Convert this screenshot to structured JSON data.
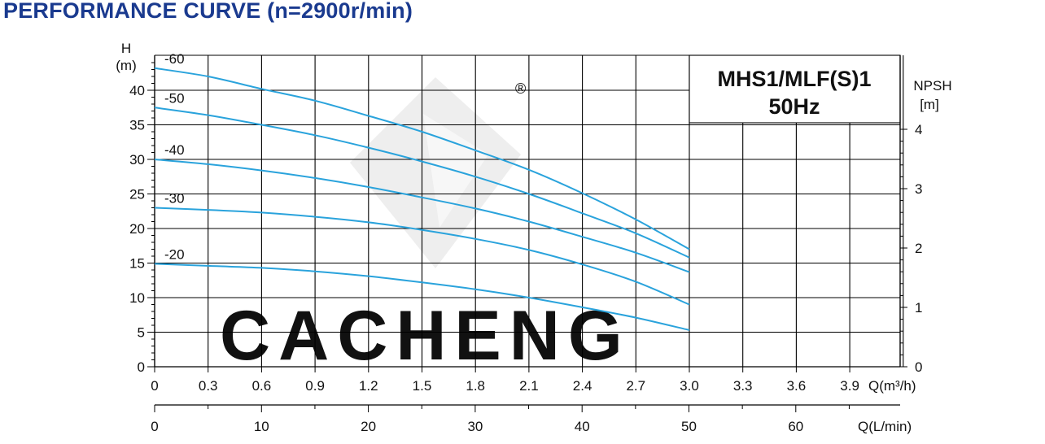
{
  "title": "PERFORMANCE CURVE (n=2900r/min)",
  "colors": {
    "title": "#1a3a8f",
    "curve": "#2aa3dc",
    "grid": "#000000",
    "watermark": "#ececec"
  },
  "chart_data": {
    "type": "line",
    "model_label": "MHS1/MLF(S)1",
    "freq_label": "50Hz",
    "watermark": "CACHENG",
    "watermark_mark": "®",
    "y_axis": {
      "label_top": "H",
      "label_unit": "(m)",
      "ylim": [
        0,
        45
      ],
      "ticks": [
        "0",
        "5",
        "10",
        "15",
        "20",
        "25",
        "30",
        "35",
        "40"
      ],
      "tick_values": [
        0,
        5,
        10,
        15,
        20,
        25,
        30,
        35,
        40
      ]
    },
    "npsh_axis": {
      "label_top": "NPSH",
      "label_unit": "[m]",
      "ylim": [
        0,
        4
      ],
      "ticks": [
        "0",
        "1",
        "2",
        "3",
        "4"
      ],
      "tick_values": [
        0,
        1,
        2,
        3,
        4
      ]
    },
    "x_axis_m3h": {
      "unit_label": "Q(m³/h)",
      "xlim": [
        0,
        4.2
      ],
      "ticks": [
        "0",
        "0.3",
        "0.6",
        "0.9",
        "1.2",
        "1.5",
        "1.8",
        "2.1",
        "2.4",
        "2.7",
        "3.0",
        "3.3",
        "3.6",
        "3.9"
      ],
      "tick_values": [
        0,
        0.3,
        0.6,
        0.9,
        1.2,
        1.5,
        1.8,
        2.1,
        2.4,
        2.7,
        3.0,
        3.3,
        3.6,
        3.9
      ]
    },
    "x_axis_lmin": {
      "unit_label": "Q(L/min)",
      "ticks": [
        "0",
        "10",
        "20",
        "30",
        "40",
        "50",
        "60"
      ],
      "tick_values": [
        0,
        10,
        20,
        30,
        40,
        50,
        60
      ]
    },
    "series": [
      {
        "name": "-60",
        "x": [
          0,
          0.3,
          0.6,
          0.9,
          1.2,
          1.5,
          1.8,
          2.1,
          2.4,
          2.7,
          3.0
        ],
        "values": [
          43.2,
          42.0,
          40.2,
          38.5,
          36.3,
          34.0,
          31.3,
          28.5,
          25.1,
          21.3,
          17.0
        ]
      },
      {
        "name": "-50",
        "x": [
          0,
          0.3,
          0.6,
          0.9,
          1.2,
          1.5,
          1.8,
          2.1,
          2.4,
          2.7,
          3.0
        ],
        "values": [
          37.5,
          36.4,
          35.0,
          33.5,
          31.7,
          29.7,
          27.5,
          25.0,
          22.2,
          19.3,
          15.8
        ]
      },
      {
        "name": "-40",
        "x": [
          0,
          0.3,
          0.6,
          0.9,
          1.2,
          1.5,
          1.8,
          2.1,
          2.4,
          2.7,
          3.0
        ],
        "values": [
          30.0,
          29.3,
          28.4,
          27.3,
          26.0,
          24.5,
          22.9,
          21.0,
          18.8,
          16.5,
          13.7
        ]
      },
      {
        "name": "-30",
        "x": [
          0,
          0.3,
          0.6,
          0.9,
          1.2,
          1.5,
          1.8,
          2.1,
          2.4,
          2.7,
          3.0
        ],
        "values": [
          23.0,
          22.7,
          22.3,
          21.7,
          20.9,
          19.8,
          18.5,
          16.9,
          14.8,
          12.3,
          9.0
        ]
      },
      {
        "name": "-20",
        "x": [
          0,
          0.3,
          0.6,
          0.9,
          1.2,
          1.5,
          1.8,
          2.1,
          2.4,
          2.7,
          3.0
        ],
        "values": [
          14.9,
          14.6,
          14.3,
          13.8,
          13.1,
          12.2,
          11.2,
          10.0,
          8.6,
          7.1,
          5.3
        ]
      }
    ]
  }
}
